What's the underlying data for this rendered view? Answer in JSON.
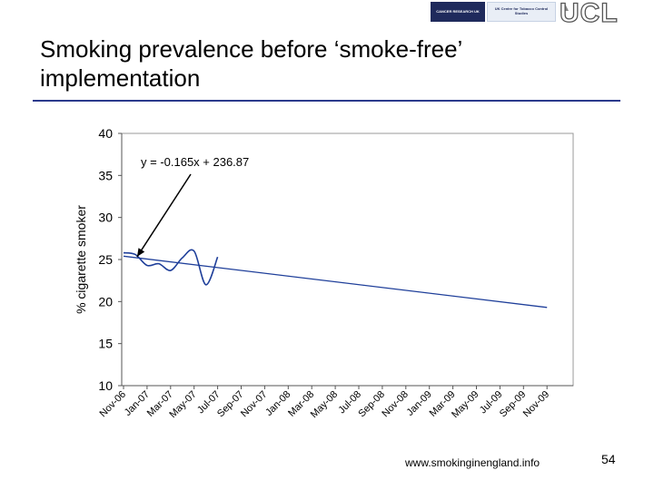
{
  "header": {
    "logos": {
      "cruk": "CANCER RESEARCH UK",
      "centre": "UK Centre for Tobacco Control Studies",
      "ucl": "UCL"
    },
    "title": "Smoking prevalence before ‘smoke-free’ implementation"
  },
  "footer": {
    "url": "www.smokinginengland.info",
    "page_number": "54"
  },
  "chart_data": {
    "type": "line",
    "ylabel": "% cigarette smoker",
    "xlabel": "",
    "ylim": [
      10,
      40
    ],
    "yticks": [
      10,
      15,
      20,
      25,
      30,
      35,
      40
    ],
    "categories": [
      "Nov-06",
      "Jan-07",
      "Mar-07",
      "May-07",
      "Jul-07",
      "Sep-07",
      "Nov-07",
      "Jan-08",
      "Mar-08",
      "May-08",
      "Jul-08",
      "Sep-08",
      "Nov-08",
      "Jan-09",
      "Mar-09",
      "May-09",
      "Jul-09",
      "Sep-09",
      "Nov-09"
    ],
    "grid": false,
    "series": [
      {
        "values_by_month": [
          {
            "m": "Nov-06",
            "v": 25.8
          },
          {
            "m": "Dec-06",
            "v": 25.6
          },
          {
            "m": "Jan-07",
            "v": 24.3
          },
          {
            "m": "Feb-07",
            "v": 24.5
          },
          {
            "m": "Mar-07",
            "v": 23.7
          },
          {
            "m": "Apr-07",
            "v": 25.2
          },
          {
            "m": "May-07",
            "v": 26.0
          },
          {
            "m": "Jun-07",
            "v": 22.0
          },
          {
            "m": "Jul-07",
            "v": 25.3
          }
        ],
        "color": "#1f3f9a",
        "style": "smooth"
      },
      {
        "values_by_month": [
          {
            "m": "Nov-06",
            "v": 25.4
          },
          {
            "m": "Nov-09",
            "v": 19.3
          }
        ],
        "color": "#1f3f9a",
        "style": "trendline"
      }
    ],
    "annotations": [
      {
        "text": "y = -0.165x + 236.87",
        "points_to": {
          "m": "Dec-06",
          "v": 24.9
        }
      }
    ]
  }
}
